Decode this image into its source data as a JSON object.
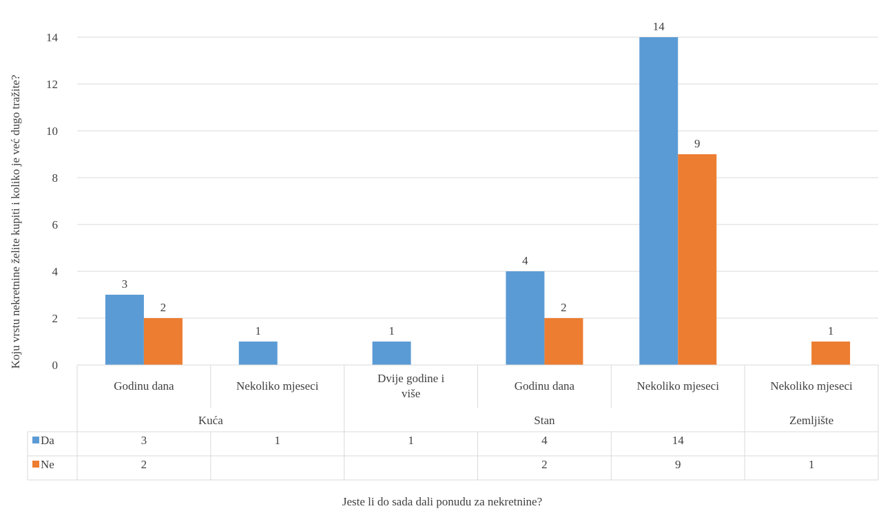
{
  "chart_data": {
    "type": "bar",
    "title": "",
    "xlabel": "Jeste li do sada dali ponudu za nekretnine?",
    "ylabel": "Koju vrstu nekretnine želite kupiti i koliko je već dugo tražite?",
    "ylim": [
      0,
      14
    ],
    "yticks": [
      0,
      2,
      4,
      6,
      8,
      10,
      12,
      14
    ],
    "grid": true,
    "legend": "data-table",
    "groups": [
      {
        "label": "Kuća",
        "categories": [
          "Godinu dana",
          "Nekoliko mjeseci"
        ]
      },
      {
        "label": "Stan",
        "categories": [
          "Dvije godine i više",
          "Godinu dana",
          "Nekoliko mjeseci"
        ]
      },
      {
        "label": "Zemljište",
        "categories": [
          "Nekoliko mjeseci"
        ]
      }
    ],
    "categories": [
      "Godinu dana",
      "Nekoliko mjeseci",
      "Dvije godine i više",
      "Godinu dana",
      "Nekoliko mjeseci",
      "Nekoliko mjeseci"
    ],
    "series": [
      {
        "name": "Da",
        "color": "#5b9bd5",
        "values": [
          3,
          1,
          1,
          4,
          14,
          null
        ]
      },
      {
        "name": "Ne",
        "color": "#ed7d31",
        "values": [
          2,
          null,
          null,
          2,
          9,
          1
        ]
      }
    ]
  }
}
